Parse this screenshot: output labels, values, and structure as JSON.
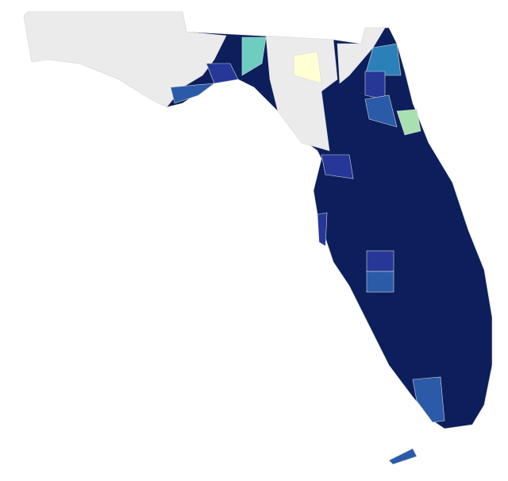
{
  "map": {
    "fills": [
      "#0c1e5b",
      "#ebebeb",
      "#263797",
      "#2a5aa8",
      "#6dcdc1",
      "#ffffd4",
      "#a9e0b0",
      "#2b80b9"
    ]
  }
}
